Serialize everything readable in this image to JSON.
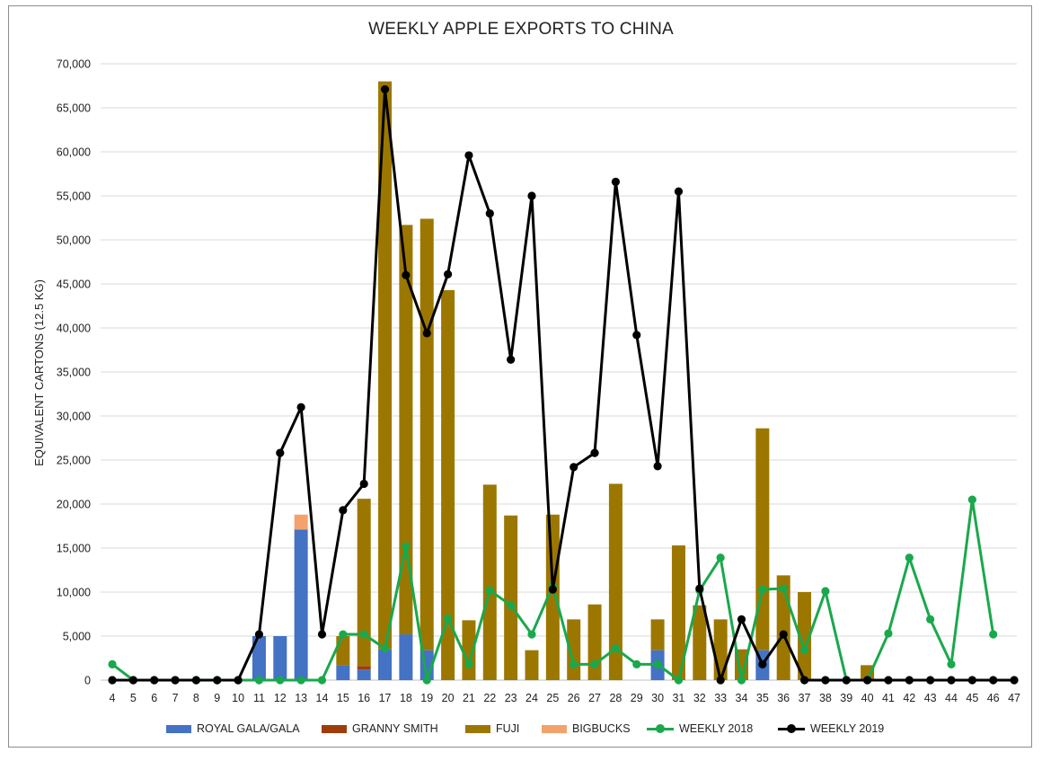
{
  "chart_data": {
    "type": "bar",
    "title": "WEEKLY APPLE EXPORTS TO CHINA",
    "xlabel": "",
    "ylabel": "EQUIVALENT CARTONS (12.5 KG)",
    "ylim": [
      0,
      70000
    ],
    "ytick_step": 5000,
    "ytick_labels": [
      "0",
      "5,000",
      "10,000",
      "15,000",
      "20,000",
      "25,000",
      "30,000",
      "35,000",
      "40,000",
      "45,000",
      "50,000",
      "55,000",
      "60,000",
      "65,000",
      "70,000"
    ],
    "grid": true,
    "legend_position": "bottom",
    "categories": [
      "4",
      "5",
      "6",
      "7",
      "8",
      "9",
      "10",
      "11",
      "12",
      "13",
      "14",
      "15",
      "16",
      "17",
      "18",
      "19",
      "20",
      "21",
      "22",
      "23",
      "24",
      "25",
      "26",
      "27",
      "28",
      "29",
      "30",
      "31",
      "32",
      "33",
      "34",
      "35",
      "36",
      "37",
      "38",
      "39",
      "40",
      "41",
      "42",
      "43",
      "44",
      "45",
      "46",
      "47"
    ],
    "bar_series": [
      {
        "name": "ROYAL GALA/GALA",
        "color": "#4472c4",
        "values": [
          0,
          0,
          0,
          0,
          0,
          0,
          0,
          5000,
          5000,
          17100,
          0,
          1700,
          1200,
          3500,
          5200,
          3400,
          0,
          0,
          0,
          0,
          0,
          0,
          0,
          0,
          0,
          0,
          3400,
          0,
          0,
          0,
          0,
          3400,
          0,
          0,
          0,
          0,
          0,
          0,
          0,
          0,
          0,
          0,
          0,
          0
        ]
      },
      {
        "name": "GRANNY SMITH",
        "color": "#9e3d0a",
        "values": [
          0,
          0,
          0,
          0,
          0,
          0,
          0,
          0,
          0,
          0,
          0,
          0,
          400,
          0,
          0,
          0,
          0,
          0,
          0,
          0,
          0,
          0,
          0,
          0,
          0,
          0,
          0,
          0,
          0,
          0,
          0,
          0,
          0,
          0,
          0,
          0,
          0,
          0,
          0,
          0,
          0,
          0,
          0,
          0
        ]
      },
      {
        "name": "FUJI",
        "color": "#9c7700",
        "values": [
          0,
          0,
          0,
          0,
          0,
          0,
          0,
          0,
          0,
          0,
          0,
          3300,
          19000,
          64500,
          46500,
          49000,
          44300,
          6800,
          22200,
          18700,
          3400,
          18800,
          6900,
          8600,
          22300,
          0,
          3500,
          15300,
          8500,
          6900,
          3500,
          25200,
          11900,
          10000,
          0,
          0,
          1700,
          0,
          0,
          0,
          0,
          0,
          0,
          0
        ]
      },
      {
        "name": "BIGBUCKS",
        "color": "#f4a26b",
        "values": [
          0,
          0,
          0,
          0,
          0,
          0,
          0,
          0,
          0,
          1700,
          0,
          0,
          0,
          0,
          0,
          0,
          0,
          0,
          0,
          0,
          0,
          0,
          0,
          0,
          0,
          0,
          0,
          0,
          0,
          0,
          0,
          0,
          0,
          0,
          0,
          0,
          0,
          0,
          0,
          0,
          0,
          0,
          0,
          0
        ]
      }
    ],
    "line_series": [
      {
        "name": "WEEKLY 2018",
        "color": "#1aa84c",
        "values": [
          1800,
          0,
          0,
          0,
          0,
          0,
          0,
          0,
          0,
          0,
          0,
          5200,
          5200,
          3600,
          15200,
          0,
          7000,
          1800,
          10200,
          8500,
          5200,
          10700,
          1800,
          1800,
          3600,
          1800,
          1800,
          0,
          10200,
          13900,
          0,
          10300,
          10400,
          3400,
          10100,
          0,
          0,
          5300,
          13900,
          6900,
          1800,
          20500,
          5200,
          null
        ]
      },
      {
        "name": "WEEKLY 2019",
        "color": "#000000",
        "values": [
          0,
          0,
          0,
          0,
          0,
          0,
          0,
          5200,
          25800,
          31000,
          5200,
          19300,
          22300,
          67100,
          46000,
          39400,
          46100,
          59600,
          53000,
          36400,
          55000,
          10300,
          24200,
          25800,
          56600,
          39200,
          24300,
          55500,
          10400,
          0,
          6900,
          1800,
          5200,
          0,
          0,
          0,
          0,
          0,
          0,
          0,
          0,
          0,
          0,
          0
        ]
      }
    ]
  }
}
